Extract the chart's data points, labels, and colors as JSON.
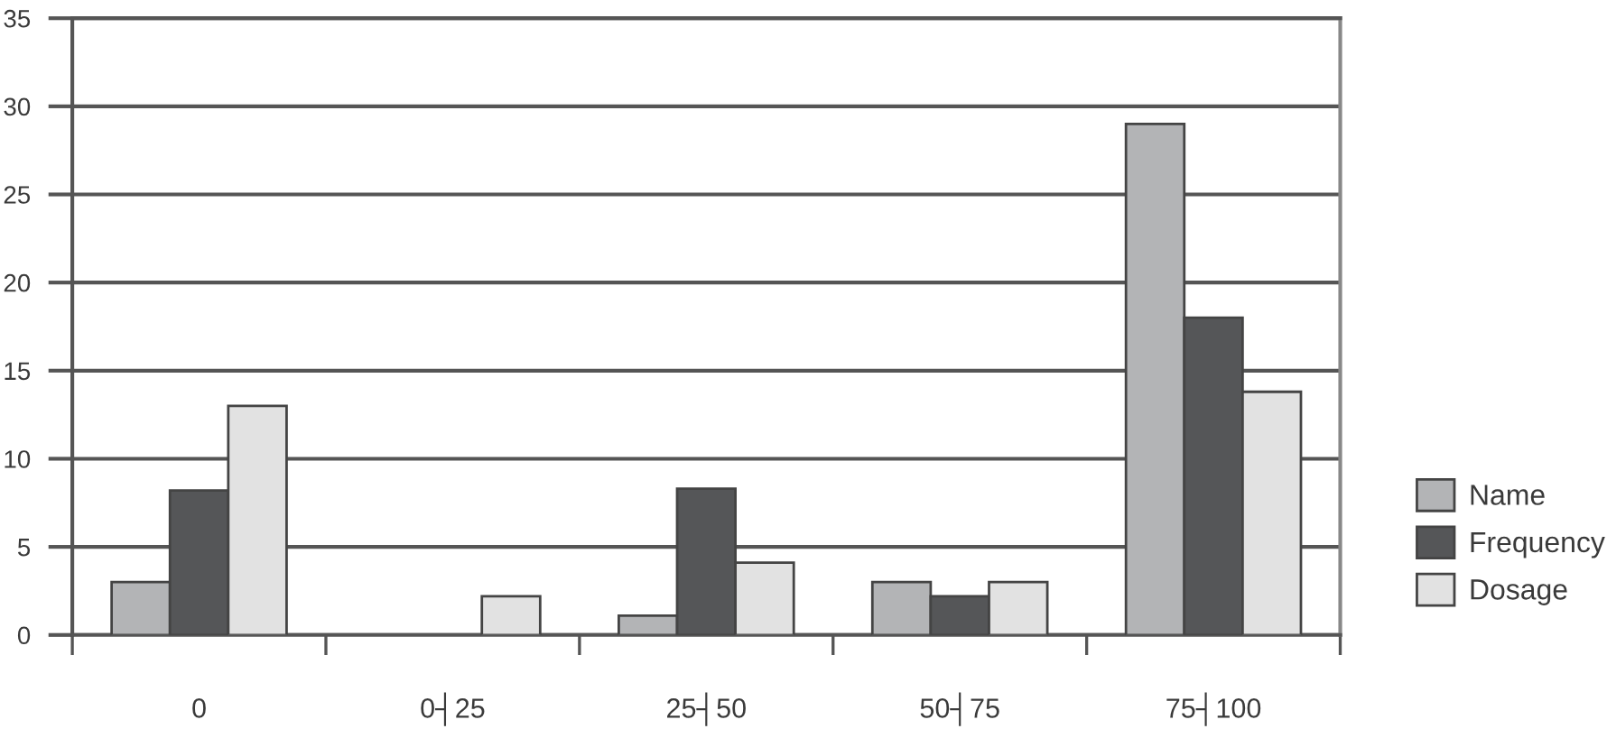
{
  "chart_data": {
    "type": "bar",
    "categories": [
      "0",
      "0┤25",
      "25┤50",
      "50┤75",
      "75┤100"
    ],
    "series": [
      {
        "name": "Name",
        "color": "#b3b4b6",
        "values": [
          3,
          null,
          1.1,
          3,
          29
        ]
      },
      {
        "name": "Frequency",
        "color": "#555658",
        "values": [
          8.2,
          null,
          8.3,
          2.2,
          18
        ]
      },
      {
        "name": "Dosage",
        "color": "#e2e2e2",
        "values": [
          13,
          2.2,
          4.1,
          3,
          13.8
        ]
      }
    ],
    "ylim": [
      0,
      35
    ],
    "yticks": [
      0,
      5,
      10,
      15,
      20,
      25,
      30,
      35
    ],
    "grid": "y",
    "legend": "right"
  }
}
